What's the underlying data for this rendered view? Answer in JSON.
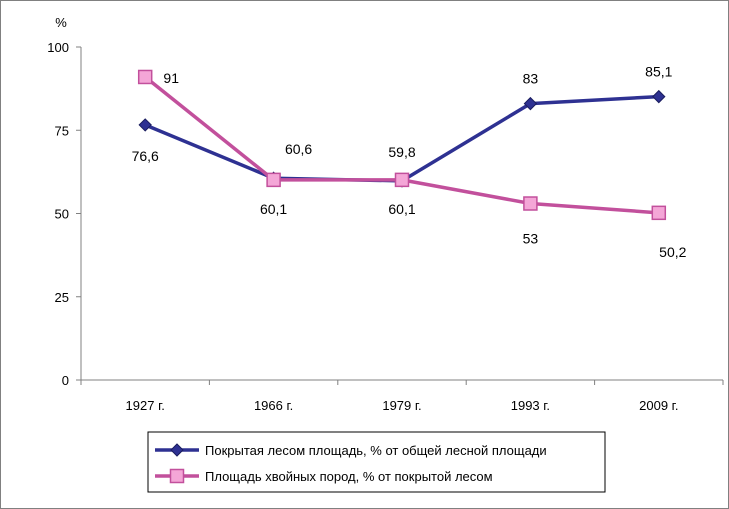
{
  "chart_data": {
    "type": "line",
    "title": "",
    "xlabel": "",
    "ylabel": "%",
    "ylim": [
      0,
      100
    ],
    "yticks": [
      0,
      25,
      50,
      75,
      100
    ],
    "grid": false,
    "legend_position": "bottom",
    "categories": [
      "1927 г.",
      "1966 г.",
      "1979 г.",
      "1993 г.",
      "2009 г."
    ],
    "series": [
      {
        "name": "Покрытая лесом площадь, % от общей лесной площади",
        "values": [
          76.6,
          60.6,
          59.8,
          83,
          85.1
        ],
        "labels": [
          "76,6",
          "60,6",
          "59,8",
          "83",
          "85,1"
        ],
        "color": "#2E3192",
        "marker": "diamond"
      },
      {
        "name": "Площадь хвойных пород, % от покрытой лесом",
        "values": [
          91,
          60.1,
          60.1,
          53,
          50.2
        ],
        "labels": [
          "91",
          "60,1",
          "60,1",
          "53",
          "50,2"
        ],
        "color": "#C2509C",
        "marker": "square",
        "marker_fill": "#F4A6D7"
      }
    ]
  }
}
